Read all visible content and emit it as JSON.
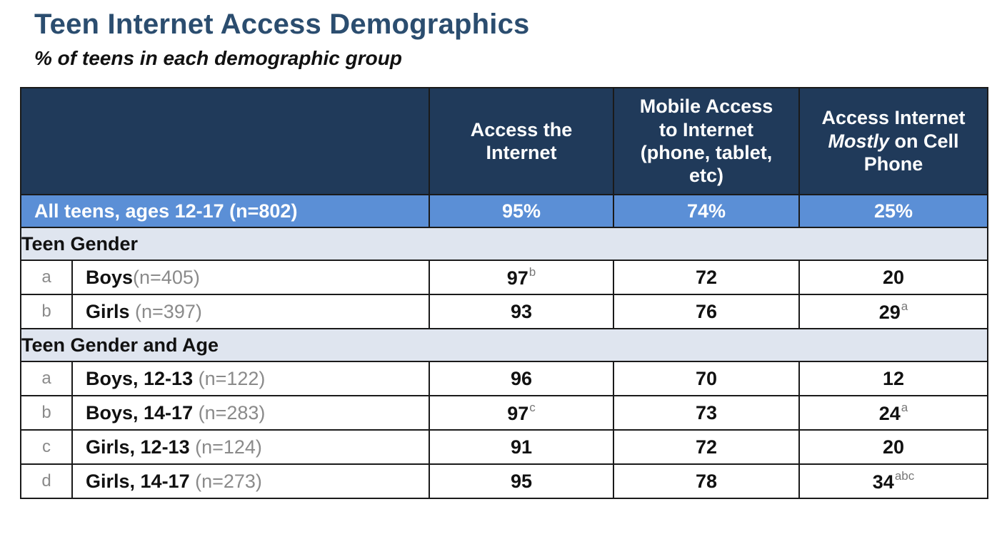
{
  "chart_data": {
    "type": "table",
    "title": "Teen Internet Access Demographics",
    "subtitle": "% of teens in each demographic group",
    "columns": [
      {
        "lines": [
          "Access the",
          "Internet"
        ]
      },
      {
        "lines": [
          "Mobile Access",
          "to Internet",
          "(phone, tablet,",
          "etc)"
        ]
      },
      {
        "lines_pre": "Access Internet",
        "italic": "Mostly",
        "after_italic": " on Cell",
        "last": "Phone"
      }
    ],
    "all_teens": {
      "label": "All teens, ages 12-17 (n=802)",
      "values": [
        "95%",
        "74%",
        "25%"
      ]
    },
    "groups": [
      {
        "name": "Teen Gender",
        "rows": [
          {
            "letter": "a",
            "label": "Boys",
            "n": "(n=405)",
            "values": [
              97,
              72,
              20
            ],
            "notes": [
              "b",
              "",
              ""
            ]
          },
          {
            "letter": "b",
            "label": "Girls ",
            "n": "(n=397)",
            "values": [
              93,
              76,
              29
            ],
            "notes": [
              "",
              "",
              "a"
            ]
          }
        ]
      },
      {
        "name": "Teen Gender and Age",
        "rows": [
          {
            "letter": "a",
            "label": "Boys, 12-13 ",
            "n": "(n=122)",
            "values": [
              96,
              70,
              12
            ],
            "notes": [
              "",
              "",
              ""
            ]
          },
          {
            "letter": "b",
            "label": "Boys, 14-17 ",
            "n": "(n=283)",
            "values": [
              97,
              73,
              24
            ],
            "notes": [
              "c",
              "",
              "a"
            ]
          },
          {
            "letter": "c",
            "label": "Girls, 12-13 ",
            "n": "(n=124)",
            "values": [
              91,
              72,
              20
            ],
            "notes": [
              "",
              "",
              ""
            ]
          },
          {
            "letter": "d",
            "label": "Girls, 14-17 ",
            "n": "(n=273)",
            "values": [
              95,
              78,
              34
            ],
            "notes": [
              "",
              "",
              "abc"
            ]
          }
        ]
      }
    ]
  }
}
